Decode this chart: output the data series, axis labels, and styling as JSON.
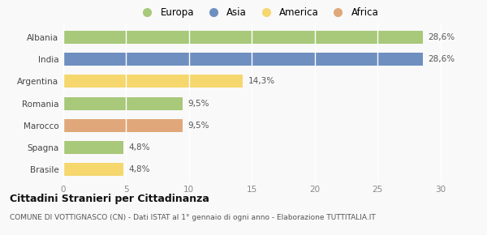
{
  "categories": [
    "Brasile",
    "Spagna",
    "Marocco",
    "Romania",
    "Argentina",
    "India",
    "Albania"
  ],
  "values": [
    4.8,
    4.8,
    9.5,
    9.5,
    14.3,
    28.6,
    28.6
  ],
  "labels": [
    "4,8%",
    "4,8%",
    "9,5%",
    "9,5%",
    "14,3%",
    "28,6%",
    "28,6%"
  ],
  "colors": [
    "#f5d76e",
    "#a8c87a",
    "#e0a87a",
    "#a8c87a",
    "#f5d76e",
    "#6e8fc0",
    "#a8c87a"
  ],
  "legend_items": [
    {
      "label": "Europa",
      "color": "#a8c87a"
    },
    {
      "label": "Asia",
      "color": "#6e8fc0"
    },
    {
      "label": "America",
      "color": "#f5d76e"
    },
    {
      "label": "Africa",
      "color": "#e0a87a"
    }
  ],
  "xlim": [
    0,
    31
  ],
  "xticks": [
    0,
    5,
    10,
    15,
    20,
    25,
    30
  ],
  "title": "Cittadini Stranieri per Cittadinanza",
  "subtitle": "COMUNE DI VOTTIGNASCO (CN) - Dati ISTAT al 1° gennaio di ogni anno - Elaborazione TUTTITALIA.IT",
  "background_color": "#f9f9f9",
  "bar_height": 0.58
}
